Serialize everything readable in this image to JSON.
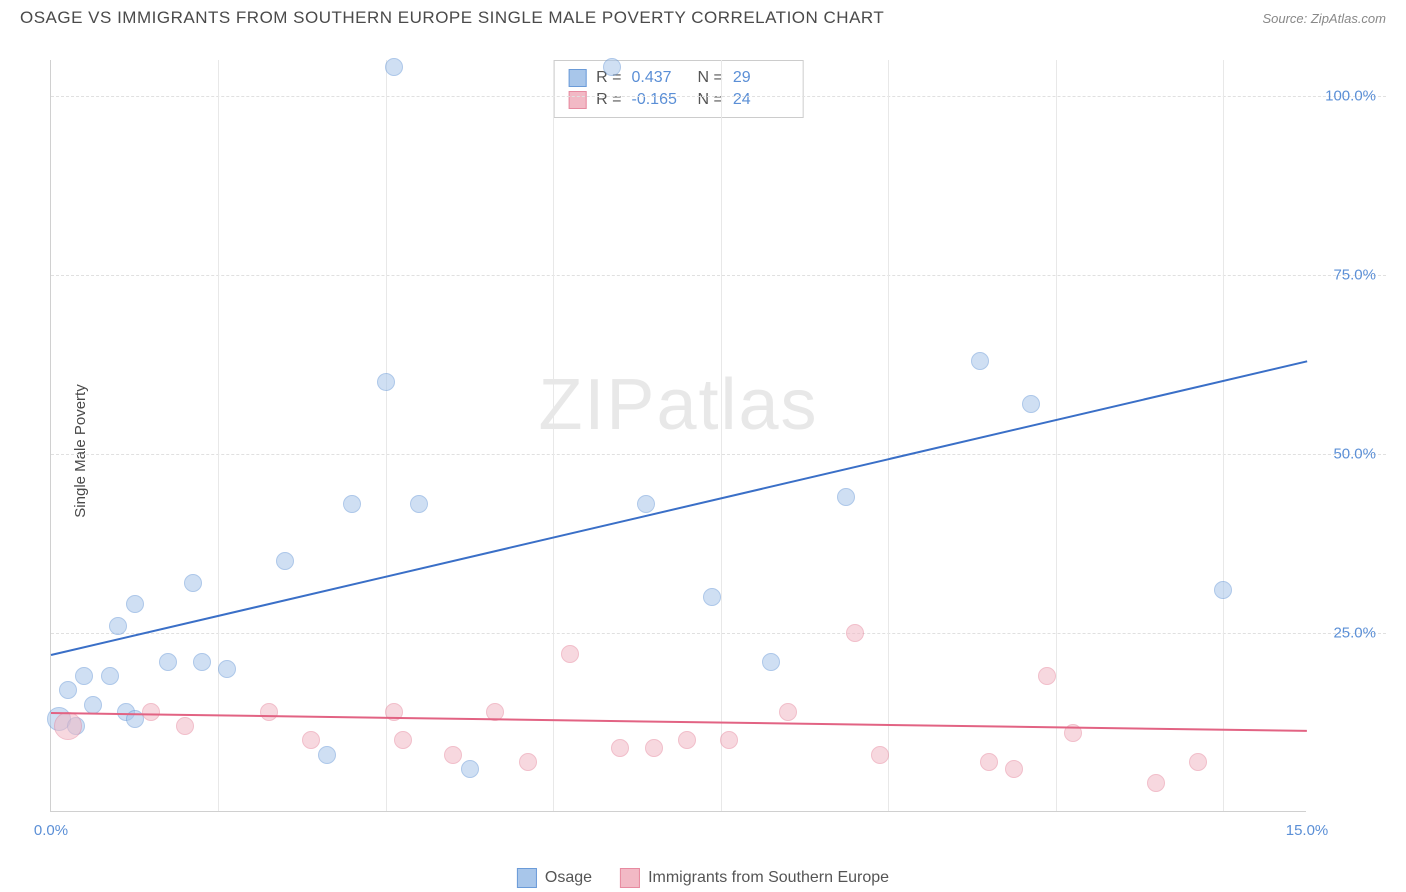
{
  "title": "OSAGE VS IMMIGRANTS FROM SOUTHERN EUROPE SINGLE MALE POVERTY CORRELATION CHART",
  "source_label": "Source: ",
  "source_name": "ZipAtlas.com",
  "watermark_a": "ZIP",
  "watermark_b": "atlas",
  "y_axis_title": "Single Male Poverty",
  "chart": {
    "type": "scatter",
    "xlim": [
      0,
      15
    ],
    "ylim": [
      0,
      105
    ],
    "x_ticks": [
      0,
      15
    ],
    "x_tick_labels": [
      "0.0%",
      "15.0%"
    ],
    "y_ticks": [
      25,
      50,
      75,
      100
    ],
    "y_tick_labels": [
      "25.0%",
      "50.0%",
      "75.0%",
      "100.0%"
    ],
    "v_grid_x": [
      2,
      4,
      6,
      8,
      10,
      12,
      14
    ],
    "background_color": "#ffffff",
    "grid_color": "#e0e0e0",
    "series": [
      {
        "name": "Osage",
        "fill": "#a8c6ea",
        "stroke": "#6b9bd8",
        "fill_opacity": 0.55,
        "marker_radius": 9,
        "trend": {
          "x1": 0,
          "y1": 22,
          "x2": 15,
          "y2": 63,
          "color": "#3a6fc7",
          "width": 2
        },
        "R": "0.437",
        "N": "29",
        "points": [
          {
            "x": 4.1,
            "y": 104,
            "r": 9
          },
          {
            "x": 6.7,
            "y": 104,
            "r": 9
          },
          {
            "x": 4.0,
            "y": 60,
            "r": 9
          },
          {
            "x": 11.1,
            "y": 63,
            "r": 9
          },
          {
            "x": 11.7,
            "y": 57,
            "r": 9
          },
          {
            "x": 3.6,
            "y": 43,
            "r": 9
          },
          {
            "x": 4.4,
            "y": 43,
            "r": 9
          },
          {
            "x": 7.1,
            "y": 43,
            "r": 9
          },
          {
            "x": 9.5,
            "y": 44,
            "r": 9
          },
          {
            "x": 2.8,
            "y": 35,
            "r": 9
          },
          {
            "x": 1.7,
            "y": 32,
            "r": 9
          },
          {
            "x": 1.0,
            "y": 29,
            "r": 9
          },
          {
            "x": 7.9,
            "y": 30,
            "r": 9
          },
          {
            "x": 14.0,
            "y": 31,
            "r": 9
          },
          {
            "x": 0.8,
            "y": 26,
            "r": 9
          },
          {
            "x": 1.4,
            "y": 21,
            "r": 9
          },
          {
            "x": 1.8,
            "y": 21,
            "r": 9
          },
          {
            "x": 2.1,
            "y": 20,
            "r": 9
          },
          {
            "x": 8.6,
            "y": 21,
            "r": 9
          },
          {
            "x": 0.4,
            "y": 19,
            "r": 9
          },
          {
            "x": 0.7,
            "y": 19,
            "r": 9
          },
          {
            "x": 0.2,
            "y": 17,
            "r": 9
          },
          {
            "x": 0.5,
            "y": 15,
            "r": 9
          },
          {
            "x": 0.9,
            "y": 14,
            "r": 9
          },
          {
            "x": 0.1,
            "y": 13,
            "r": 12
          },
          {
            "x": 1.0,
            "y": 13,
            "r": 9
          },
          {
            "x": 0.3,
            "y": 12,
            "r": 9
          },
          {
            "x": 3.3,
            "y": 8,
            "r": 9
          },
          {
            "x": 5.0,
            "y": 6,
            "r": 9
          }
        ]
      },
      {
        "name": "Immigrants from Southern Europe",
        "fill": "#f2b9c5",
        "stroke": "#e78aa0",
        "fill_opacity": 0.55,
        "marker_radius": 9,
        "trend": {
          "x1": 0,
          "y1": 14,
          "x2": 15,
          "y2": 11.5,
          "color": "#e26383",
          "width": 2
        },
        "R": "-0.165",
        "N": "24",
        "points": [
          {
            "x": 9.6,
            "y": 25,
            "r": 9
          },
          {
            "x": 6.2,
            "y": 22,
            "r": 9
          },
          {
            "x": 11.9,
            "y": 19,
            "r": 9
          },
          {
            "x": 1.2,
            "y": 14,
            "r": 9
          },
          {
            "x": 2.6,
            "y": 14,
            "r": 9
          },
          {
            "x": 4.1,
            "y": 14,
            "r": 9
          },
          {
            "x": 5.3,
            "y": 14,
            "r": 9
          },
          {
            "x": 8.8,
            "y": 14,
            "r": 9
          },
          {
            "x": 0.2,
            "y": 12,
            "r": 14
          },
          {
            "x": 1.6,
            "y": 12,
            "r": 9
          },
          {
            "x": 3.1,
            "y": 10,
            "r": 9
          },
          {
            "x": 4.2,
            "y": 10,
            "r": 9
          },
          {
            "x": 7.6,
            "y": 10,
            "r": 9
          },
          {
            "x": 8.1,
            "y": 10,
            "r": 9
          },
          {
            "x": 12.2,
            "y": 11,
            "r": 9
          },
          {
            "x": 4.8,
            "y": 8,
            "r": 9
          },
          {
            "x": 6.8,
            "y": 9,
            "r": 9
          },
          {
            "x": 7.2,
            "y": 9,
            "r": 9
          },
          {
            "x": 5.7,
            "y": 7,
            "r": 9
          },
          {
            "x": 9.9,
            "y": 8,
            "r": 9
          },
          {
            "x": 11.2,
            "y": 7,
            "r": 9
          },
          {
            "x": 11.5,
            "y": 6,
            "r": 9
          },
          {
            "x": 13.2,
            "y": 4,
            "r": 9
          },
          {
            "x": 13.7,
            "y": 7,
            "r": 9
          }
        ]
      }
    ]
  },
  "stats_labels": {
    "R": "R =",
    "N": "N ="
  },
  "legend": {
    "osage": "Osage",
    "immigrants": "Immigrants from Southern Europe"
  }
}
